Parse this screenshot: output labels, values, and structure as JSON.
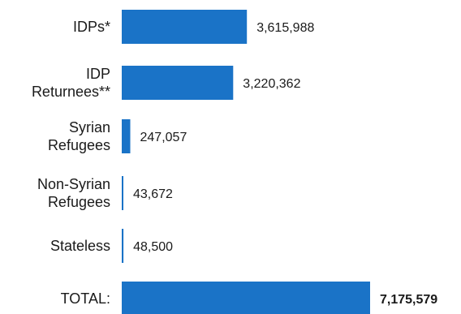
{
  "chart_data": {
    "type": "bar",
    "orientation": "horizontal",
    "bar_color": "#1a73c7",
    "categories": [
      [
        "IDPs*"
      ],
      [
        "IDP",
        "Returnees**"
      ],
      [
        "Syrian",
        "Refugees"
      ],
      [
        "Non-Syrian",
        "Refugees"
      ],
      [
        "Stateless"
      ],
      [
        "TOTAL:"
      ]
    ],
    "values": [
      3615988,
      3220362,
      247057,
      43672,
      48500,
      7175579
    ],
    "value_labels": [
      "3,615,988",
      "3,220,362",
      "247,057",
      "43,672",
      "48,500",
      "7,175,579"
    ],
    "bold_value_index": 5,
    "xlim": [
      0,
      7175579
    ]
  }
}
